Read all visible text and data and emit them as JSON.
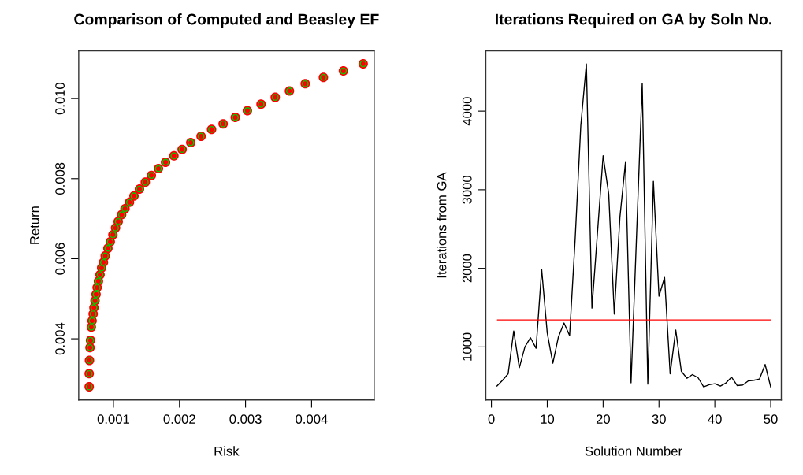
{
  "chart_data": [
    {
      "type": "scatter",
      "title": "Comparison of Computed and Beasley EF",
      "xlabel": "Risk",
      "ylabel": "Return",
      "xlim": [
        0.000474,
        0.004948
      ],
      "ylim": [
        0.002472,
        0.011193
      ],
      "xticks": [
        0.001,
        0.002,
        0.003,
        0.004
      ],
      "yticks": [
        0.004,
        0.006,
        0.008,
        {
          "value": 0.01,
          "label": "0.010"
        }
      ],
      "grid": false,
      "legend": false,
      "marker": "circle",
      "x": [
        0.000633,
        0.000633,
        0.000637,
        0.000645,
        0.000653,
        0.000665,
        0.000677,
        0.000693,
        0.000705,
        0.000721,
        0.000737,
        0.000753,
        0.000773,
        0.000797,
        0.000821,
        0.000849,
        0.000876,
        0.000916,
        0.000952,
        0.000992,
        0.001032,
        0.001072,
        0.001124,
        0.001175,
        0.001243,
        0.001311,
        0.001394,
        0.001482,
        0.001574,
        0.001681,
        0.001789,
        0.001916,
        0.00204,
        0.002171,
        0.002327,
        0.002486,
        0.002661,
        0.002845,
        0.003028,
        0.003235,
        0.00345,
        0.003665,
        0.003904,
        0.004179,
        0.004482,
        0.004781
      ],
      "series": [
        {
          "color": "#ff0000",
          "values": [
            0.0028,
            0.00313,
            0.00346,
            0.00378,
            0.00396,
            0.00429,
            0.00445,
            0.00462,
            0.00478,
            0.00495,
            0.00511,
            0.00528,
            0.00544,
            0.0056,
            0.00577,
            0.00591,
            0.00607,
            0.00626,
            0.00642,
            0.0066,
            0.00677,
            0.00693,
            0.0071,
            0.00725,
            0.00741,
            0.00757,
            0.00774,
            0.00791,
            0.00808,
            0.00825,
            0.00841,
            0.00857,
            0.00873,
            0.0089,
            0.00906,
            0.00923,
            0.00937,
            0.00953,
            0.0097,
            0.00986,
            0.01003,
            0.01019,
            0.01037,
            0.01053,
            0.01069,
            0.01087
          ]
        },
        {
          "color": "#00cc00",
          "values": [
            0.0028,
            0.00313,
            0.00346,
            0.00378,
            0.00396,
            0.00429,
            0.00445,
            0.00462,
            0.00478,
            0.00495,
            0.00511,
            0.00528,
            0.00544,
            0.0056,
            0.00577,
            0.00591,
            0.00607,
            0.00626,
            0.00642,
            0.0066,
            0.00677,
            0.00693,
            0.0071,
            0.00725,
            0.00741,
            0.00757,
            0.00774,
            0.00791,
            0.00808,
            0.00825,
            0.00841,
            0.00857,
            0.00873,
            0.0089,
            0.00906,
            0.00923,
            0.00937,
            0.00953,
            0.0097,
            0.00986,
            0.01003,
            0.01019,
            0.01037,
            0.01053,
            0.01069,
            0.01087
          ]
        }
      ]
    },
    {
      "type": "line",
      "title": "Iterations Required on GA by Soln No.",
      "xlabel": "Solution Number",
      "ylabel": "Iterations from GA",
      "xlim": [
        -1.0,
        51.9
      ],
      "ylim": [
        325,
        4768
      ],
      "xticks": [
        0,
        10,
        20,
        30,
        40,
        50
      ],
      "yticks": [
        1000,
        2000,
        3000,
        4000
      ],
      "grid": false,
      "legend": false,
      "marker": "none",
      "line_style": "solid",
      "x": [
        1,
        2,
        3,
        4,
        5,
        6,
        7,
        8,
        9,
        10,
        11,
        12,
        13,
        14,
        15,
        16,
        17,
        18,
        19,
        20,
        21,
        22,
        23,
        24,
        25,
        26,
        27,
        28,
        29,
        30,
        31,
        32,
        33,
        34,
        35,
        36,
        37,
        38,
        39,
        40,
        41,
        42,
        43,
        44,
        45,
        46,
        47,
        48,
        49,
        50
      ],
      "series": [
        {
          "color": "#000000",
          "values": [
            502,
            575,
            658,
            1203,
            735,
            1000,
            1117,
            983,
            1985,
            1177,
            793,
            1127,
            1304,
            1144,
            2380,
            3816,
            4601,
            1494,
            2463,
            3432,
            2948,
            1418,
            2647,
            3348,
            542,
            2446,
            4351,
            526,
            3108,
            1645,
            1885,
            658,
            1216,
            691,
            601,
            648,
            608,
            492,
            519,
            532,
            502,
            542,
            615,
            508,
            515,
            568,
            575,
            592,
            776,
            492
          ]
        }
      ],
      "ref_lines": [
        {
          "axis": "y",
          "value": 1344,
          "color": "#ff0000",
          "line_style": "solid"
        }
      ]
    }
  ]
}
